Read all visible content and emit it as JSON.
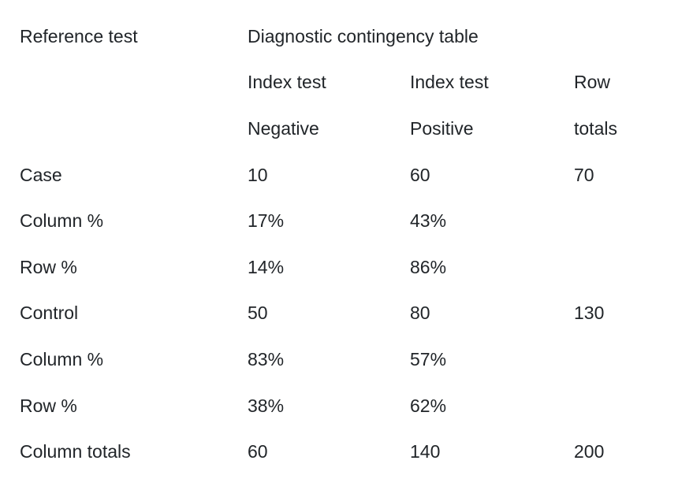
{
  "page": {
    "background_color": "#ffffff",
    "text_color": "#212529"
  },
  "table": {
    "corner_label": "Reference test",
    "title": "Diagnostic contingency table",
    "columns": [
      {
        "header_line1": "Index test",
        "header_line2": "Negative"
      },
      {
        "header_line1": "Index test",
        "header_line2": "Positive"
      },
      {
        "header_line1": "Row",
        "header_line2": "totals"
      }
    ],
    "rows": [
      {
        "label": "Case",
        "values": [
          "10",
          "60",
          "70"
        ]
      },
      {
        "label": "Column %",
        "values": [
          "17%",
          "43%",
          ""
        ]
      },
      {
        "label": "Row %",
        "values": [
          "14%",
          "86%",
          ""
        ]
      },
      {
        "label": "Control",
        "values": [
          "50",
          "80",
          "130"
        ]
      },
      {
        "label": "Column %",
        "values": [
          "83%",
          "57%",
          ""
        ]
      },
      {
        "label": "Row %",
        "values": [
          "38%",
          "62%",
          ""
        ]
      },
      {
        "label": "Column totals",
        "values": [
          "60",
          "140",
          "200"
        ]
      }
    ]
  }
}
